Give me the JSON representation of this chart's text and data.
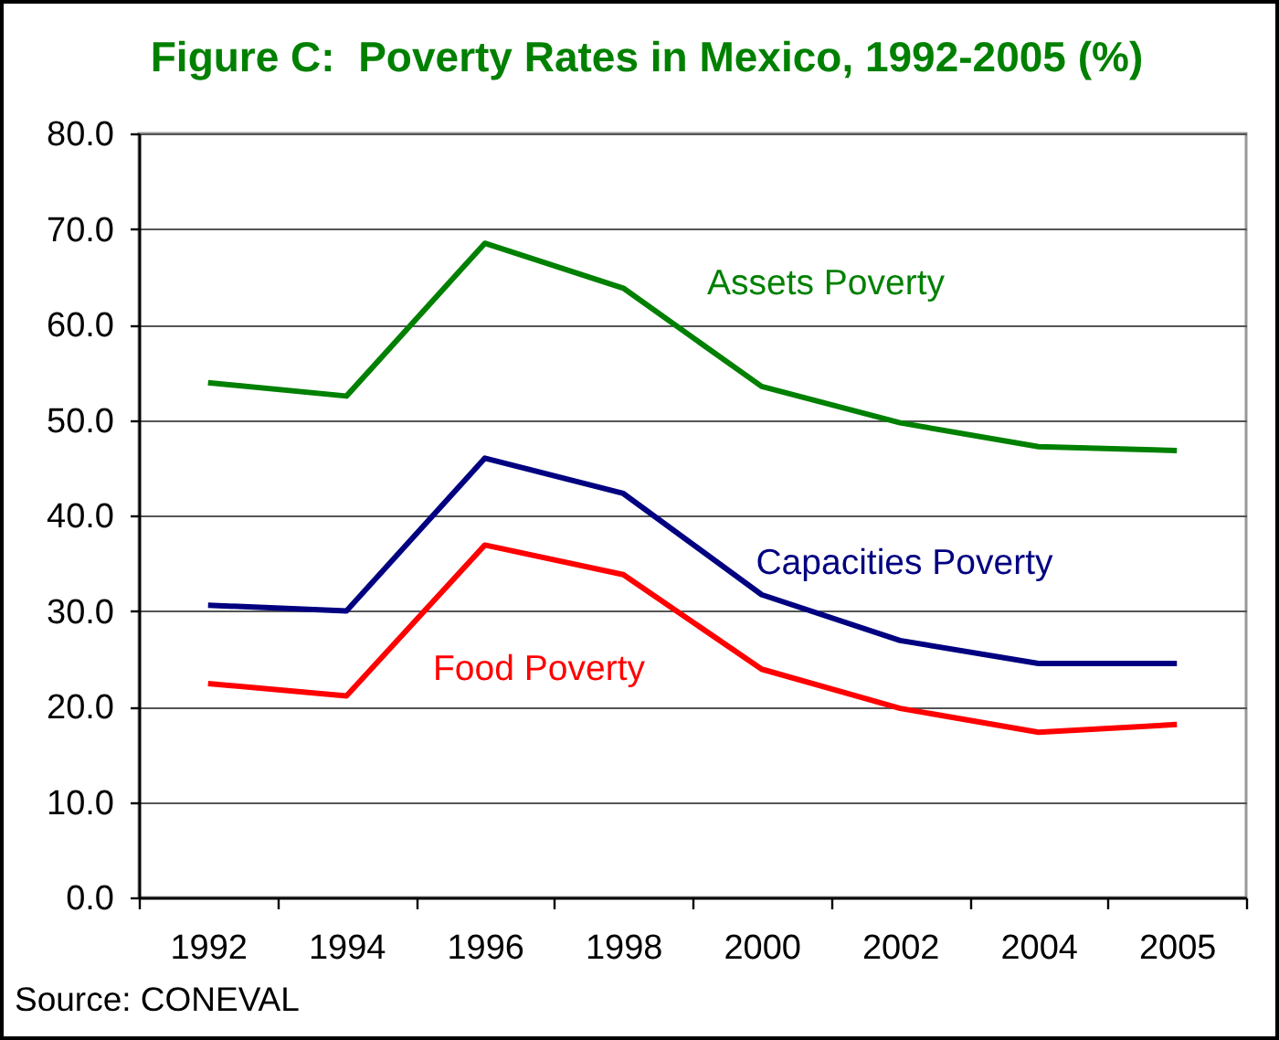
{
  "chart_data": {
    "type": "line",
    "title": "Figure C:  Poverty Rates in Mexico, 1992-2005 (%)",
    "categories": [
      "1992",
      "1994",
      "1996",
      "1998",
      "2000",
      "2002",
      "2004",
      "2005"
    ],
    "series": [
      {
        "name": "Assets Poverty",
        "color": "#008000",
        "values": [
          53.9,
          52.5,
          68.5,
          63.8,
          53.5,
          49.7,
          47.2,
          46.8
        ]
      },
      {
        "name": "Capacities Poverty",
        "color": "#000080",
        "values": [
          30.6,
          30.0,
          46.0,
          42.3,
          31.7,
          26.9,
          24.5,
          24.5
        ]
      },
      {
        "name": "Food Poverty",
        "color": "#ff0000",
        "values": [
          22.4,
          21.1,
          36.9,
          33.8,
          23.9,
          19.8,
          17.3,
          18.1
        ]
      }
    ],
    "ylim": [
      0,
      80
    ],
    "yticks": [
      {
        "value": 0,
        "label": "0.0"
      },
      {
        "value": 10,
        "label": "10.0"
      },
      {
        "value": 20,
        "label": "20.0"
      },
      {
        "value": 30,
        "label": "30.0"
      },
      {
        "value": 40,
        "label": "40.0"
      },
      {
        "value": 50,
        "label": "50.0"
      },
      {
        "value": 60,
        "label": "60.0"
      },
      {
        "value": 70,
        "label": "70.0"
      },
      {
        "value": 80,
        "label": "80.0"
      }
    ],
    "grid": "y",
    "annotations": [
      "Source: CONEVAL"
    ]
  }
}
